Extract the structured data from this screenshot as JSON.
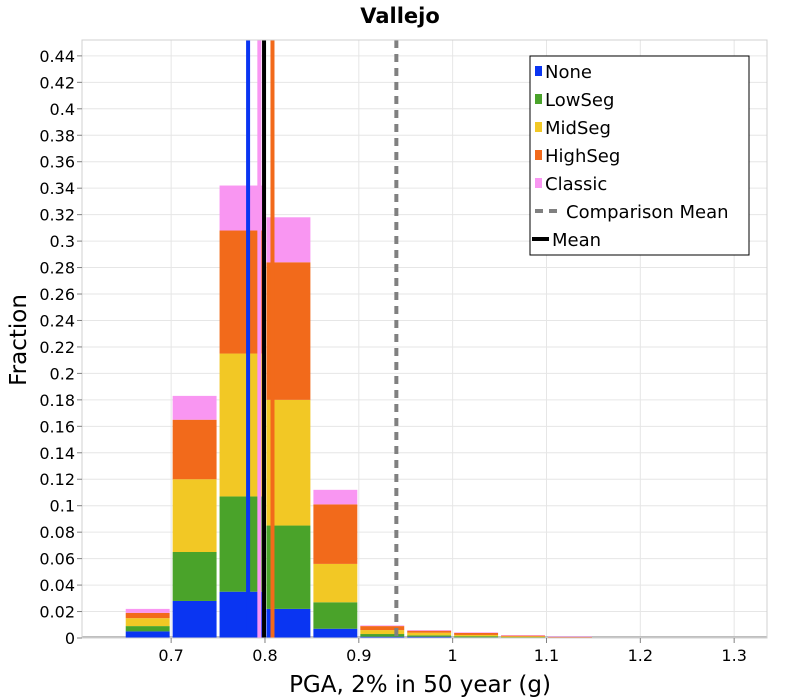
{
  "chart_data": {
    "type": "bar",
    "stacked": true,
    "title": "Vallejo",
    "xlabel": "PGA, 2% in 50 year (g)",
    "ylabel": "Fraction",
    "xlim": [
      0.605,
      1.335
    ],
    "ylim": [
      0,
      0.452
    ],
    "bin_width": 0.05,
    "x_ticks": [
      0.7,
      0.8,
      0.9,
      1,
      1.1,
      1.2,
      1.3
    ],
    "x_tick_labels": [
      "0.7",
      "0.8",
      "0.9",
      "1",
      "1.1",
      "1.2",
      "1.3"
    ],
    "y_ticks": [
      0,
      0.02,
      0.04,
      0.06,
      0.08,
      0.1,
      0.12,
      0.14,
      0.16,
      0.18,
      0.2,
      0.22,
      0.24,
      0.26,
      0.28,
      0.3,
      0.32,
      0.34,
      0.36,
      0.38,
      0.4,
      0.42,
      0.44
    ],
    "y_tick_labels": [
      "0",
      "0.02",
      "0.04",
      "0.06",
      "0.08",
      "0.1",
      "0.12",
      "0.14",
      "0.16",
      "0.18",
      "0.2",
      "0.22",
      "0.24",
      "0.26",
      "0.28",
      "0.3",
      "0.32",
      "0.34",
      "0.36",
      "0.38",
      "0.4",
      "0.42",
      "0.44"
    ],
    "x": [
      0.675,
      0.725,
      0.775,
      0.825,
      0.875,
      0.925,
      0.975,
      1.025,
      1.075,
      1.125
    ],
    "series": [
      {
        "name": "None",
        "color": "#0a35f2",
        "values": [
          0.005,
          0.028,
          0.035,
          0.022,
          0.007,
          0.001,
          0.001,
          0.0005,
          0.0003,
          0.0001
        ]
      },
      {
        "name": "LowSeg",
        "color": "#4aa32a",
        "values": [
          0.004,
          0.037,
          0.072,
          0.063,
          0.02,
          0.002,
          0.001,
          0.0008,
          0.0003,
          0.0001
        ]
      },
      {
        "name": "MidSeg",
        "color": "#f2c825",
        "values": [
          0.006,
          0.055,
          0.108,
          0.095,
          0.029,
          0.003,
          0.002,
          0.001,
          0.0006,
          0.0002
        ]
      },
      {
        "name": "HighSeg",
        "color": "#f26a1b",
        "values": [
          0.004,
          0.045,
          0.093,
          0.104,
          0.045,
          0.003,
          0.0015,
          0.0015,
          0.0006,
          0.0003
        ]
      },
      {
        "name": "Classic",
        "color": "#f996f2",
        "values": [
          0.003,
          0.018,
          0.034,
          0.034,
          0.011,
          0.0005,
          0.0005,
          0.0002,
          0.0001,
          0.0001
        ]
      }
    ],
    "vertical_lines": [
      {
        "name": "None mean",
        "x": 0.782,
        "color": "#0a35f2",
        "style": "solid"
      },
      {
        "name": "HighSeg mean",
        "x": 0.808,
        "color": "#f26a1b",
        "style": "solid"
      },
      {
        "name": "Classic mean",
        "x": 0.794,
        "color": "#f996f2",
        "style": "solid"
      },
      {
        "name": "Mean",
        "x": 0.799,
        "color": "#000000",
        "style": "solid"
      },
      {
        "name": "Comparison Mean",
        "x": 0.94,
        "color": "#808080",
        "style": "dashed"
      }
    ],
    "legend": {
      "position": "top-right",
      "items": [
        {
          "label": "None",
          "color": "#0a35f2",
          "kind": "box"
        },
        {
          "label": "LowSeg",
          "color": "#4aa32a",
          "kind": "box"
        },
        {
          "label": "MidSeg",
          "color": "#f2c825",
          "kind": "box"
        },
        {
          "label": "HighSeg",
          "color": "#f26a1b",
          "kind": "box"
        },
        {
          "label": "Classic",
          "color": "#f996f2",
          "kind": "box"
        },
        {
          "label": "Comparison Mean",
          "color": "#808080",
          "kind": "dashed"
        },
        {
          "label": "Mean",
          "color": "#000000",
          "kind": "line"
        }
      ]
    },
    "grid": true
  }
}
